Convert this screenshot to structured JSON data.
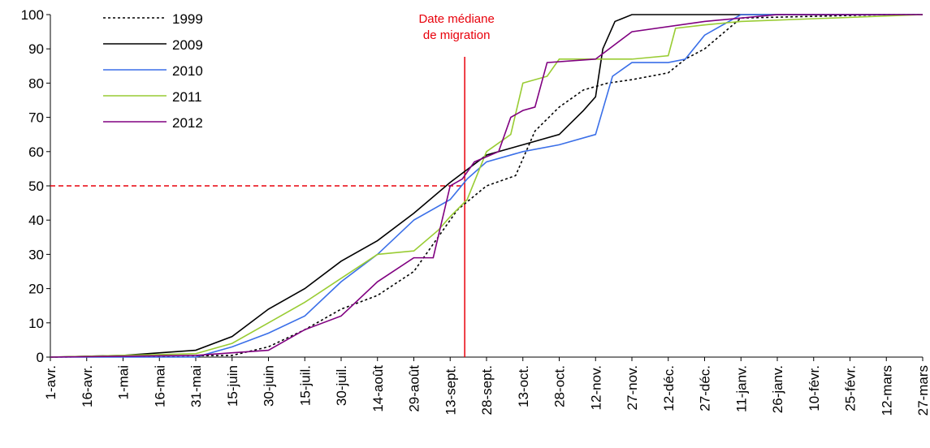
{
  "chart_data": {
    "type": "line",
    "xlim": [
      0,
      360
    ],
    "xticks": [
      {
        "value": 0,
        "label": "1-avr."
      },
      {
        "value": 15,
        "label": "16-avr."
      },
      {
        "value": 30,
        "label": "1-mai"
      },
      {
        "value": 45,
        "label": "16-mai"
      },
      {
        "value": 60,
        "label": "31-mai"
      },
      {
        "value": 75,
        "label": "15-juin"
      },
      {
        "value": 90,
        "label": "30-juin"
      },
      {
        "value": 105,
        "label": "15-juil."
      },
      {
        "value": 120,
        "label": "30-juil."
      },
      {
        "value": 135,
        "label": "14-août"
      },
      {
        "value": 150,
        "label": "29-août"
      },
      {
        "value": 165,
        "label": "13-sept."
      },
      {
        "value": 180,
        "label": "28-sept."
      },
      {
        "value": 195,
        "label": "13-oct."
      },
      {
        "value": 210,
        "label": "28-oct."
      },
      {
        "value": 225,
        "label": "12-nov."
      },
      {
        "value": 240,
        "label": "27-nov."
      },
      {
        "value": 255,
        "label": "12-déc."
      },
      {
        "value": 270,
        "label": "27-déc."
      },
      {
        "value": 285,
        "label": "11-janv."
      },
      {
        "value": 300,
        "label": "26-janv."
      },
      {
        "value": 315,
        "label": "10-févr."
      },
      {
        "value": 330,
        "label": "25-févr."
      },
      {
        "value": 345,
        "label": "12-mars"
      },
      {
        "value": 360,
        "label": "27-mars"
      }
    ],
    "ylim": [
      0,
      100
    ],
    "yticks": [
      0,
      10,
      20,
      30,
      40,
      50,
      60,
      70,
      80,
      90,
      100
    ],
    "grid": false,
    "legend": "upper-left",
    "median": {
      "x": 171,
      "y": 50,
      "label": [
        "Date médiane",
        "de migration"
      ],
      "color": "#e8000b"
    },
    "series": [
      {
        "name": "1999",
        "color": "#000000",
        "dash": "dotted",
        "x": [
          0,
          75,
          90,
          105,
          120,
          135,
          150,
          160,
          168,
          180,
          192,
          200,
          210,
          220,
          230,
          240,
          255,
          262,
          270,
          285,
          345,
          360
        ],
        "values": [
          0,
          0.5,
          3,
          8,
          14,
          18,
          25,
          35,
          43,
          50,
          53,
          66,
          73,
          78,
          80,
          81,
          83,
          87,
          90,
          99,
          100,
          100
        ]
      },
      {
        "name": "2009",
        "color": "#000000",
        "dash": "solid",
        "x": [
          0,
          30,
          60,
          75,
          90,
          105,
          120,
          135,
          150,
          165,
          180,
          195,
          210,
          220,
          225,
          228,
          233,
          240,
          360
        ],
        "values": [
          0,
          0.5,
          2,
          6,
          14,
          20,
          28,
          34,
          42,
          51,
          59,
          62,
          65,
          72,
          76,
          90,
          98,
          100,
          100
        ]
      },
      {
        "name": "2010",
        "color": "#3a6fe8",
        "dash": "solid",
        "x": [
          0,
          60,
          75,
          90,
          105,
          120,
          135,
          150,
          165,
          172,
          180,
          195,
          210,
          225,
          232,
          240,
          255,
          262,
          270,
          285,
          360
        ],
        "values": [
          0,
          0,
          3,
          7,
          12,
          22,
          30,
          40,
          46,
          52,
          57,
          60,
          62,
          65,
          82,
          86,
          86,
          87,
          94,
          100,
          100
        ]
      },
      {
        "name": "2011",
        "color": "#99cc33",
        "dash": "solid",
        "x": [
          0,
          60,
          75,
          90,
          105,
          120,
          135,
          150,
          160,
          165,
          172,
          180,
          190,
          195,
          205,
          210,
          240,
          255,
          258,
          270,
          285,
          360
        ],
        "values": [
          0,
          1,
          4,
          10,
          16,
          23,
          30,
          31,
          37,
          41,
          46,
          60,
          65,
          80,
          82,
          87,
          87,
          88,
          96,
          97,
          98,
          100
        ]
      },
      {
        "name": "2012",
        "color": "#800080",
        "dash": "solid",
        "x": [
          0,
          60,
          90,
          105,
          120,
          135,
          150,
          158,
          165,
          170,
          175,
          185,
          190,
          195,
          200,
          205,
          225,
          240,
          270,
          300,
          360
        ],
        "values": [
          0,
          0.5,
          2,
          8,
          12,
          22,
          29,
          29,
          50,
          52,
          57,
          60,
          70,
          72,
          73,
          86,
          87,
          95,
          98,
          100,
          100
        ]
      }
    ]
  }
}
